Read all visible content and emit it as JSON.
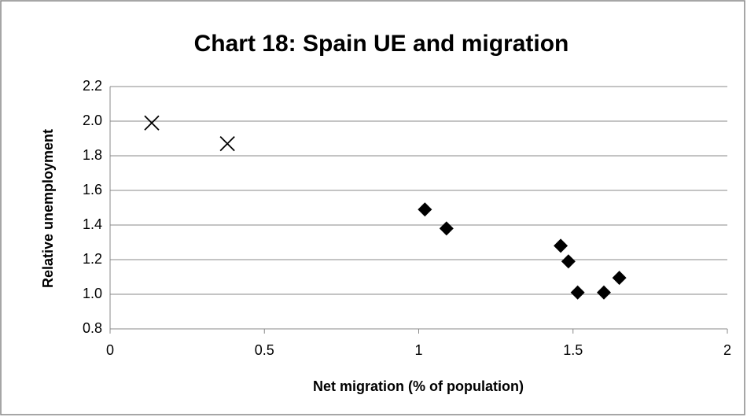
{
  "chart_data": {
    "type": "scatter",
    "title": "Chart 18: Spain UE and migration",
    "x_label": "Net migration (% of population)",
    "y_label": "Relative unemployment",
    "xlim": [
      0,
      2
    ],
    "xticks": [
      0,
      0.5,
      1,
      1.5,
      2
    ],
    "ylim": [
      0.8,
      2.2
    ],
    "yticks": [
      0.8,
      {
        "value": 1,
        "label": "1.0"
      },
      1.2,
      1.4,
      1.6,
      1.8,
      {
        "value": 2,
        "label": "2.0"
      },
      2.2
    ],
    "grid": true,
    "series": [
      {
        "marker": "x",
        "color": "#000000",
        "x": [
          0.135,
          0.38
        ],
        "values": [
          1.99,
          1.87
        ]
      },
      {
        "marker": "diamond",
        "color": "#000000",
        "x": [
          1.02,
          1.09,
          1.46,
          1.485,
          1.515,
          1.6,
          1.65
        ],
        "values": [
          1.49,
          1.38,
          1.28,
          1.19,
          1.01,
          1.01,
          1.095
        ]
      }
    ]
  }
}
